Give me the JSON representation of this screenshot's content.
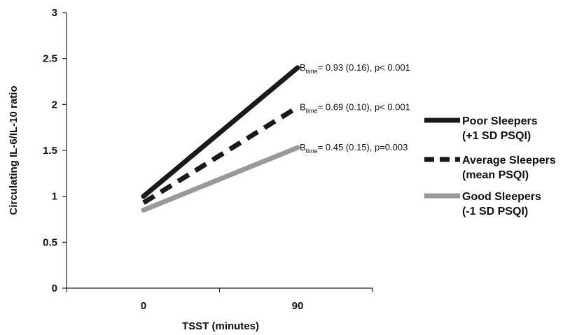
{
  "chart_data": {
    "type": "line",
    "xlabel": "TSST (minutes)",
    "ylabel": "Circulating IL-6/IL-10 ratio",
    "categories": [
      "0",
      "90"
    ],
    "ylim": [
      0,
      3
    ],
    "yticks": [
      "0",
      "0.5",
      "1",
      "1.5",
      "2",
      "2.5",
      "3"
    ],
    "grid": false,
    "legend_position": "right",
    "series": [
      {
        "name_line1": "Poor Sleepers",
        "name_line2": "(+1 SD PSQI)",
        "values": [
          1.0,
          2.4
        ],
        "color": "#1a1a1a",
        "dash": "solid",
        "annotation": {
          "prefix": "B",
          "sub": "time",
          "text": "= 0.93 (0.16), p< 0.001"
        }
      },
      {
        "name_line1": "Average Sleepers",
        "name_line2": "(mean PSQI)",
        "values": [
          0.93,
          1.97
        ],
        "color": "#1a1a1a",
        "dash": "dashed",
        "annotation": {
          "prefix": "B",
          "sub": "time",
          "text": "= 0.69 (0.10), p< 0.001"
        }
      },
      {
        "name_line1": "Good Sleepers",
        "name_line2": "(-1 SD PSQI)",
        "values": [
          0.85,
          1.53
        ],
        "color": "#999999",
        "dash": "solid",
        "annotation": {
          "prefix": "B",
          "sub": "time",
          "text": "= 0.45 (0.15), p=0.003"
        }
      }
    ]
  }
}
